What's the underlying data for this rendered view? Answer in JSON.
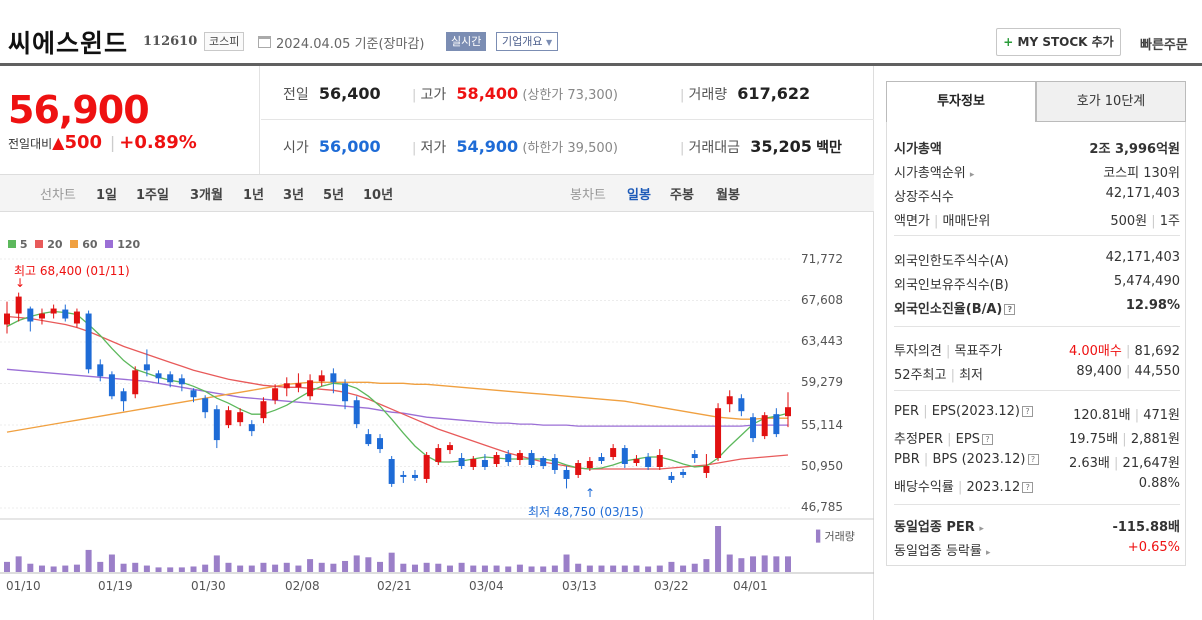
{
  "header": {
    "name": "씨에스윈드",
    "code": "112610",
    "market": "코스피",
    "date": "2024.04.05 기준(장마감)",
    "realtime": "실시간",
    "overview": "기업개요",
    "my_stock": "MY STOCK 추가",
    "quick_order": "빠른주문"
  },
  "quote": {
    "price": "56,900",
    "change_label": "전일대비",
    "change": "500",
    "change_pct": "+0.89%",
    "prev_label": "전일",
    "prev": "56,400",
    "high_label": "고가",
    "high": "58,400",
    "upper_label": "(상한가",
    "upper": "73,300)",
    "volume_label": "거래량",
    "volume": "617,622",
    "open_label": "시가",
    "open": "56,000",
    "low_label": "저가",
    "low": "54,900",
    "lower_label": "(하한가",
    "lower": "39,500)",
    "amount_label": "거래대금",
    "amount": "35,205",
    "amount_unit": "백만"
  },
  "periods": {
    "line_label": "선차트",
    "line": [
      "1일",
      "1주일",
      "3개월",
      "1년",
      "3년",
      "5년",
      "10년"
    ],
    "candle_label": "봉차트",
    "candle": [
      "일봉",
      "주봉",
      "월봉"
    ],
    "selected": "일봉"
  },
  "tabs": {
    "info": "투자정보",
    "quote10": "호가 10단계"
  },
  "info": {
    "market_cap": {
      "k": "시가총액",
      "v": "2조 3,996억원"
    },
    "cap_rank": {
      "k": "시가총액순위",
      "v": "코스피 130위"
    },
    "shares": {
      "k": "상장주식수",
      "v": "42,171,403"
    },
    "par": {
      "k1": "액면가",
      "k2": "매매단위",
      "v1": "500원",
      "v2": "1주"
    },
    "foreign_limit": {
      "k": "외국인한도주식수(A)",
      "v": "42,171,403"
    },
    "foreign_hold": {
      "k": "외국인보유주식수(B)",
      "v": "5,474,490"
    },
    "foreign_ratio": {
      "k": "외국인소진율(B/A)",
      "v": "12.98%"
    },
    "opinion": {
      "k1": "투자의견",
      "k2": "목표주가",
      "v1": "4.00매수",
      "v2": "81,692"
    },
    "week52": {
      "k1": "52주최고",
      "k2": "최저",
      "v1": "89,400",
      "v2": "44,550"
    },
    "per": {
      "k1": "PER",
      "k2": "EPS(2023.12)",
      "v1": "120.81배",
      "v2": "471원"
    },
    "est_per": {
      "k1": "추정PER",
      "k2": "EPS",
      "v1": "19.75배",
      "v2": "2,881원"
    },
    "pbr": {
      "k1": "PBR",
      "k2": "BPS (2023.12)",
      "v1": "2.63배",
      "v2": "21,647원"
    },
    "dividend": {
      "k1": "배당수익률",
      "k2": "2023.12",
      "v": "0.88%"
    },
    "sector_per": {
      "k": "동일업종 PER",
      "v": "-115.88배"
    },
    "sector_rate": {
      "k": "동일업종 등락률",
      "v": "+0.65%"
    }
  },
  "colors": {
    "up": "#e11111",
    "down": "#1e6bd6",
    "ma5": "#5cb85c",
    "ma20": "#e85a5a",
    "ma60": "#f0a040",
    "ma120": "#9b6fd6",
    "volume": "#9b7fc8"
  },
  "chart_data": {
    "type": "candlestick",
    "legend": [
      "5",
      "20",
      "60",
      "120"
    ],
    "high_label": "최고 68,400 (01/11)",
    "low_label": "최저 48,750 (03/15)",
    "volume_label": "거래량",
    "yticks": [
      "71,772",
      "67,608",
      "63,443",
      "59,279",
      "55,114",
      "50,950",
      "46,785"
    ],
    "ylim": [
      46785,
      71772
    ],
    "xticks": [
      "01/10",
      "01/19",
      "01/30",
      "02/08",
      "02/21",
      "03/04",
      "03/13",
      "03/22",
      "04/01"
    ],
    "candles": [
      {
        "o": 65200,
        "c": 66300,
        "h": 67500,
        "l": 64300
      },
      {
        "o": 66300,
        "c": 68000,
        "h": 68400,
        "l": 65500
      },
      {
        "o": 66800,
        "c": 65500,
        "h": 67000,
        "l": 64500
      },
      {
        "o": 65800,
        "c": 66300,
        "h": 66800,
        "l": 65200
      },
      {
        "o": 66300,
        "c": 66800,
        "h": 67200,
        "l": 65800
      },
      {
        "o": 66700,
        "c": 65800,
        "h": 67200,
        "l": 65500
      },
      {
        "o": 65300,
        "c": 66500,
        "h": 66800,
        "l": 64900
      },
      {
        "o": 66300,
        "c": 60700,
        "h": 66600,
        "l": 60300
      },
      {
        "o": 61200,
        "c": 60000,
        "h": 61700,
        "l": 59500
      },
      {
        "o": 60200,
        "c": 58000,
        "h": 60500,
        "l": 57700
      },
      {
        "o": 58500,
        "c": 57500,
        "h": 58800,
        "l": 56500
      },
      {
        "o": 58200,
        "c": 60600,
        "h": 61000,
        "l": 57800
      },
      {
        "o": 61200,
        "c": 60600,
        "h": 62700,
        "l": 60000
      },
      {
        "o": 60300,
        "c": 59800,
        "h": 60600,
        "l": 59300
      },
      {
        "o": 60200,
        "c": 59400,
        "h": 60500,
        "l": 58900
      },
      {
        "o": 59800,
        "c": 59200,
        "h": 60200,
        "l": 58500
      },
      {
        "o": 58600,
        "c": 57900,
        "h": 58800,
        "l": 57400
      },
      {
        "o": 57800,
        "c": 56400,
        "h": 58100,
        "l": 55800
      },
      {
        "o": 56700,
        "c": 53600,
        "h": 57100,
        "l": 52800
      },
      {
        "o": 55100,
        "c": 56600,
        "h": 57000,
        "l": 54800
      },
      {
        "o": 55400,
        "c": 56400,
        "h": 56800,
        "l": 55000
      },
      {
        "o": 55200,
        "c": 54500,
        "h": 55600,
        "l": 54000
      },
      {
        "o": 55800,
        "c": 57500,
        "h": 57900,
        "l": 55300
      },
      {
        "o": 57600,
        "c": 58800,
        "h": 59200,
        "l": 57200
      },
      {
        "o": 58800,
        "c": 59300,
        "h": 59900,
        "l": 58000
      },
      {
        "o": 58900,
        "c": 59300,
        "h": 60300,
        "l": 58400
      },
      {
        "o": 58000,
        "c": 59600,
        "h": 60200,
        "l": 57600
      },
      {
        "o": 59500,
        "c": 60100,
        "h": 60600,
        "l": 59000
      },
      {
        "o": 60300,
        "c": 59400,
        "h": 60800,
        "l": 58300
      },
      {
        "o": 59300,
        "c": 57500,
        "h": 59700,
        "l": 56700
      },
      {
        "o": 57600,
        "c": 55200,
        "h": 58000,
        "l": 54800
      },
      {
        "o": 54200,
        "c": 53200,
        "h": 54700,
        "l": 53000
      },
      {
        "o": 53800,
        "c": 52700,
        "h": 54200,
        "l": 52300
      },
      {
        "o": 51700,
        "c": 49200,
        "h": 52000,
        "l": 48900
      },
      {
        "o": 50100,
        "c": 49900,
        "h": 50500,
        "l": 49300
      },
      {
        "o": 50100,
        "c": 49800,
        "h": 50600,
        "l": 49500
      },
      {
        "o": 49700,
        "c": 52100,
        "h": 52400,
        "l": 49300
      },
      {
        "o": 51400,
        "c": 52800,
        "h": 53200,
        "l": 51100
      },
      {
        "o": 52600,
        "c": 53100,
        "h": 53400,
        "l": 52200
      },
      {
        "o": 51800,
        "c": 51000,
        "h": 52300,
        "l": 50700
      },
      {
        "o": 50900,
        "c": 51700,
        "h": 52000,
        "l": 50600
      },
      {
        "o": 51600,
        "c": 50900,
        "h": 52200,
        "l": 50600
      },
      {
        "o": 51200,
        "c": 52100,
        "h": 52400,
        "l": 50900
      },
      {
        "o": 52200,
        "c": 51400,
        "h": 52600,
        "l": 51000
      },
      {
        "o": 51600,
        "c": 52300,
        "h": 52600,
        "l": 51100
      },
      {
        "o": 52300,
        "c": 51100,
        "h": 52600,
        "l": 50800
      },
      {
        "o": 51800,
        "c": 51000,
        "h": 52000,
        "l": 50700
      },
      {
        "o": 51800,
        "c": 50600,
        "h": 52200,
        "l": 50200
      },
      {
        "o": 50600,
        "c": 49700,
        "h": 51000,
        "l": 48750
      },
      {
        "o": 50100,
        "c": 51300,
        "h": 51600,
        "l": 49800
      },
      {
        "o": 50800,
        "c": 51500,
        "h": 51900,
        "l": 50500
      },
      {
        "o": 51900,
        "c": 51500,
        "h": 52300,
        "l": 51200
      },
      {
        "o": 51900,
        "c": 52800,
        "h": 53200,
        "l": 51600
      },
      {
        "o": 52800,
        "c": 51200,
        "h": 53100,
        "l": 50800
      },
      {
        "o": 51300,
        "c": 51700,
        "h": 52100,
        "l": 51000
      },
      {
        "o": 51900,
        "c": 50900,
        "h": 52300,
        "l": 50600
      },
      {
        "o": 50900,
        "c": 52100,
        "h": 52700,
        "l": 50600
      },
      {
        "o": 50000,
        "c": 49600,
        "h": 50400,
        "l": 49300
      },
      {
        "o": 50400,
        "c": 50100,
        "h": 50700,
        "l": 49800
      },
      {
        "o": 52200,
        "c": 51800,
        "h": 52600,
        "l": 51300
      },
      {
        "o": 50300,
        "c": 51000,
        "h": 52200,
        "l": 49800
      },
      {
        "o": 51800,
        "c": 56800,
        "h": 57300,
        "l": 51500
      },
      {
        "o": 57200,
        "c": 58000,
        "h": 58600,
        "l": 56400
      },
      {
        "o": 57800,
        "c": 56500,
        "h": 58200,
        "l": 56000
      },
      {
        "o": 55900,
        "c": 53800,
        "h": 56300,
        "l": 53400
      },
      {
        "o": 54000,
        "c": 56100,
        "h": 56400,
        "l": 53700
      },
      {
        "o": 56200,
        "c": 54200,
        "h": 56800,
        "l": 53900
      },
      {
        "o": 56000,
        "c": 56900,
        "h": 58400,
        "l": 54900
      }
    ],
    "ma5": [
      65000,
      65600,
      66000,
      66300,
      66500,
      66400,
      66200,
      65200,
      64100,
      62800,
      61600,
      60700,
      60300,
      59900,
      59600,
      59400,
      59000,
      58500,
      57800,
      57300,
      56700,
      56200,
      56200,
      56600,
      57100,
      57800,
      58500,
      59000,
      59300,
      59200,
      58800,
      58000,
      57000,
      55700,
      54300,
      53000,
      52000,
      51400,
      51400,
      51500,
      51700,
      51900,
      51800,
      51700,
      51700,
      51700,
      51700,
      51500,
      51100,
      50800,
      50700,
      50800,
      51100,
      51500,
      51700,
      51900,
      51900,
      51600,
      51200,
      50900,
      51000,
      51800,
      53000,
      54100,
      55200,
      55800,
      56000,
      56300
    ],
    "ma20": [
      66000,
      65900,
      65800,
      65600,
      65400,
      65200,
      64900,
      64500,
      64000,
      63500,
      63000,
      62600,
      62200,
      61800,
      61400,
      61000,
      60600,
      60300,
      60000,
      59700,
      59500,
      59300,
      59100,
      59000,
      58900,
      58900,
      58800,
      58700,
      58600,
      58400,
      58100,
      57700,
      57200,
      56700,
      56200,
      55700,
      55200,
      54700,
      54300,
      53900,
      53500,
      53100,
      52700,
      52300,
      52000,
      51700,
      51400,
      51200,
      51000,
      50800,
      50700,
      50700,
      50700,
      50700,
      50700,
      50700,
      50700,
      50800,
      50900,
      51000,
      51100,
      51300,
      51500,
      51700,
      51800,
      51900,
      52000,
      52100
    ],
    "ma60": [
      54400,
      54600,
      54800,
      55000,
      55200,
      55400,
      55600,
      55800,
      56000,
      56200,
      56400,
      56600,
      56800,
      57000,
      57200,
      57400,
      57600,
      57800,
      58000,
      58200,
      58400,
      58600,
      58800,
      59000,
      59200,
      59300,
      59400,
      59400,
      59400,
      59400,
      59400,
      59400,
      59300,
      59300,
      59300,
      59200,
      59200,
      59100,
      59000,
      58900,
      58800,
      58700,
      58600,
      58500,
      58400,
      58300,
      58200,
      58100,
      58000,
      57900,
      57800,
      57700,
      57600,
      57500,
      57300,
      57100,
      56900,
      56700,
      56500,
      56300,
      56100,
      55900,
      55800,
      55700,
      55700,
      55800,
      55800,
      55800
    ],
    "ma120": [
      60700,
      60600,
      60500,
      60400,
      60300,
      60200,
      60100,
      60000,
      59900,
      59800,
      59700,
      59600,
      59500,
      59300,
      59100,
      58900,
      58700,
      58500,
      58300,
      58100,
      57900,
      57800,
      57700,
      57600,
      57500,
      57400,
      57300,
      57200,
      57100,
      57000,
      56900,
      56800,
      56600,
      56400,
      56300,
      56100,
      55900,
      55800,
      55700,
      55600,
      55500,
      55400,
      55300,
      55300,
      55200,
      55200,
      55100,
      55100,
      55100,
      55000,
      55000,
      55000,
      55000,
      55000,
      55000,
      55000,
      55000,
      55000,
      55000,
      55000,
      55000,
      55000,
      55000,
      55000,
      55100,
      55100,
      55100,
      55100
    ],
    "volume": [
      22,
      34,
      18,
      14,
      12,
      14,
      16,
      48,
      22,
      38,
      18,
      20,
      14,
      10,
      10,
      10,
      12,
      16,
      36,
      20,
      14,
      14,
      20,
      16,
      20,
      14,
      28,
      20,
      18,
      24,
      36,
      32,
      22,
      42,
      18,
      16,
      20,
      18,
      14,
      20,
      14,
      14,
      14,
      12,
      16,
      12,
      12,
      14,
      38,
      18,
      14,
      14,
      14,
      14,
      14,
      12,
      14,
      22,
      14,
      18,
      28,
      100,
      38,
      30,
      34,
      36,
      34,
      34
    ]
  }
}
